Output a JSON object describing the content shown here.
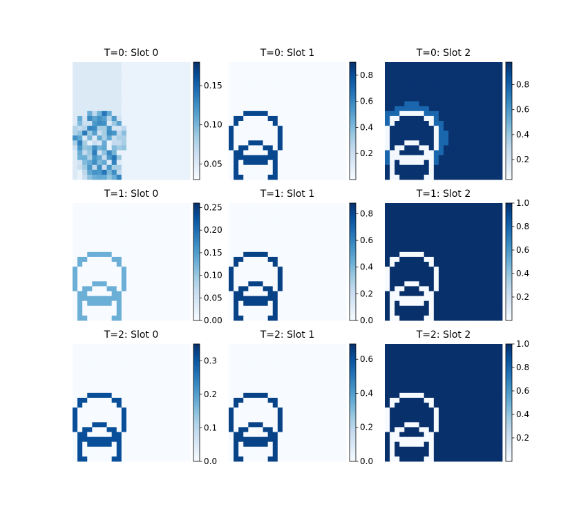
{
  "chart_data": {
    "type": "heatmap",
    "layout": {
      "rows": 3,
      "cols": 3
    },
    "colormap": "Blues",
    "colormap_stops": [
      "#f7fbff",
      "#deebf7",
      "#c6dbef",
      "#9ecae1",
      "#6baed6",
      "#4292c6",
      "#2171b5",
      "#08519c",
      "#08306b"
    ],
    "grid_size": [
      24,
      24
    ],
    "panels": [
      {
        "title": "T=0: Slot 0",
        "vmin": 0.03,
        "vmax": 0.18,
        "ticks": [
          0.05,
          0.1,
          0.15
        ],
        "tick_labels": [
          "0.05",
          "0.10",
          "0.15"
        ],
        "mode": "noisy",
        "ring": 0.09,
        "ring_var": 0.05,
        "bg": 0.04,
        "left_bg": 0.05
      },
      {
        "title": "T=0: Slot 1",
        "vmin": 0.0,
        "vmax": 0.9,
        "ticks": [
          0.2,
          0.4,
          0.6,
          0.8
        ],
        "tick_labels": [
          "0.2",
          "0.4",
          "0.6",
          "0.8"
        ],
        "mode": "outline",
        "ring": 0.82,
        "bg": 0.0
      },
      {
        "title": "T=0: Slot 2",
        "vmin": 0.04,
        "vmax": 0.98,
        "ticks": [
          0.2,
          0.4,
          0.6,
          0.8
        ],
        "tick_labels": [
          "0.2",
          "0.4",
          "0.6",
          "0.8"
        ],
        "mode": "inverse",
        "ring": 0.06,
        "bg": 0.97,
        "halo": 0.78
      },
      {
        "title": "T=1: Slot 0",
        "vmin": 0.0,
        "vmax": 0.26,
        "ticks": [
          0.0,
          0.05,
          0.1,
          0.15,
          0.2,
          0.25
        ],
        "tick_labels": [
          "0.00",
          "0.05",
          "0.10",
          "0.15",
          "0.20",
          "0.25"
        ],
        "mode": "outline",
        "ring": 0.13,
        "bg": 0.0
      },
      {
        "title": "T=1: Slot 1",
        "vmin": 0.0,
        "vmax": 0.88,
        "ticks": [
          0.0,
          0.2,
          0.4,
          0.6,
          0.8
        ],
        "tick_labels": [
          "0.0",
          "0.2",
          "0.4",
          "0.6",
          "0.8"
        ],
        "mode": "outline",
        "ring": 0.82,
        "bg": 0.0
      },
      {
        "title": "T=1: Slot 2",
        "vmin": 0.0,
        "vmax": 1.0,
        "ticks": [
          0.2,
          0.4,
          0.6,
          0.8,
          1.0
        ],
        "tick_labels": [
          "0.2",
          "0.4",
          "0.6",
          "0.8",
          "1.0"
        ],
        "mode": "inverse",
        "ring": 0.0,
        "bg": 1.0
      },
      {
        "title": "T=2: Slot 0",
        "vmin": 0.0,
        "vmax": 0.35,
        "ticks": [
          0.0,
          0.1,
          0.2,
          0.3
        ],
        "tick_labels": [
          "0.0",
          "0.1",
          "0.2",
          "0.3"
        ],
        "mode": "outline",
        "ring": 0.31,
        "bg": 0.0
      },
      {
        "title": "T=2: Slot 1",
        "vmin": 0.0,
        "vmax": 0.69,
        "ticks": [
          0.0,
          0.2,
          0.4,
          0.6
        ],
        "tick_labels": [
          "0.0",
          "0.2",
          "0.4",
          "0.6"
        ],
        "mode": "outline",
        "ring": 0.64,
        "bg": 0.0
      },
      {
        "title": "T=2: Slot 2",
        "vmin": 0.0,
        "vmax": 1.0,
        "ticks": [
          0.2,
          0.4,
          0.6,
          0.8,
          1.0
        ],
        "tick_labels": [
          "0.2",
          "0.4",
          "0.6",
          "0.8",
          "1.0"
        ],
        "mode": "inverse",
        "ring": 0.0,
        "bg": 1.0
      }
    ]
  }
}
